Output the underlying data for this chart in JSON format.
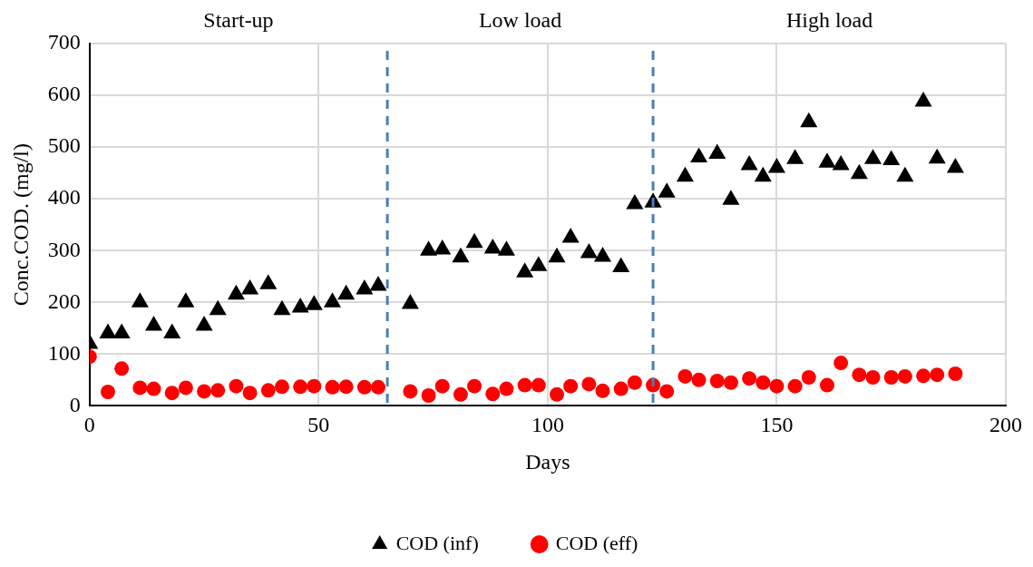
{
  "chart_data": {
    "type": "scatter",
    "xlabel": "Days",
    "ylabel": "Conc.COD. (mg/l)",
    "xlim": [
      0,
      200
    ],
    "xticks": [
      0,
      50,
      100,
      150,
      200
    ],
    "ylim": [
      0,
      700
    ],
    "yticks": [
      0,
      100,
      200,
      300,
      400,
      500,
      600,
      700
    ],
    "grid": true,
    "legend": "bottom",
    "annotations": [
      "Start-up",
      "Low load",
      "High load"
    ],
    "ref_lines": [
      {
        "axis": "x",
        "value": 65,
        "color": "#4a7ebb",
        "line_style": "dashed"
      },
      {
        "axis": "x",
        "value": 123,
        "color": "#4a7ebb",
        "line_style": "dashed"
      }
    ],
    "series": [
      {
        "name": "COD (inf)",
        "color": "#000000",
        "marker": "triangle",
        "x": [
          0,
          4,
          7,
          11,
          14,
          18,
          21,
          25,
          28,
          32,
          35,
          39,
          42,
          46,
          49,
          53,
          56,
          60,
          63,
          70,
          74,
          77,
          81,
          84,
          88,
          91,
          95,
          98,
          102,
          105,
          109,
          112,
          116,
          119,
          123,
          126,
          130,
          133,
          137,
          140,
          144,
          147,
          150,
          154,
          157,
          161,
          164,
          168,
          171,
          175,
          178,
          182,
          185,
          189
        ],
        "values": [
          120,
          140,
          140,
          200,
          155,
          140,
          200,
          155,
          185,
          215,
          225,
          235,
          185,
          190,
          195,
          200,
          215,
          225,
          232,
          197,
          300,
          302,
          287,
          315,
          304,
          300,
          258,
          270,
          287,
          325,
          295,
          288,
          268,
          390,
          393,
          412,
          443,
          480,
          487,
          398,
          465,
          443,
          460,
          477,
          548,
          470,
          465,
          448,
          477,
          475,
          443,
          588,
          478,
          460
        ]
      },
      {
        "name": "COD (eff)",
        "color": "#ff0000",
        "marker": "circle",
        "x": [
          0,
          4,
          7,
          11,
          14,
          18,
          21,
          25,
          28,
          32,
          35,
          39,
          42,
          46,
          49,
          53,
          56,
          60,
          63,
          70,
          74,
          77,
          81,
          84,
          88,
          91,
          95,
          98,
          102,
          105,
          109,
          112,
          116,
          119,
          123,
          126,
          130,
          133,
          137,
          140,
          144,
          147,
          150,
          154,
          157,
          161,
          164,
          168,
          171,
          175,
          178,
          182,
          185,
          189
        ],
        "values": [
          95,
          27,
          72,
          35,
          33,
          25,
          35,
          28,
          30,
          38,
          25,
          30,
          37,
          37,
          38,
          36,
          37,
          36,
          36,
          28,
          20,
          38,
          22,
          38,
          23,
          33,
          40,
          40,
          22,
          38,
          42,
          29,
          33,
          45,
          40,
          28,
          57,
          50,
          48,
          45,
          53,
          45,
          38,
          38,
          55,
          40,
          83,
          60,
          55,
          55,
          57,
          58,
          60,
          62
        ]
      }
    ]
  }
}
